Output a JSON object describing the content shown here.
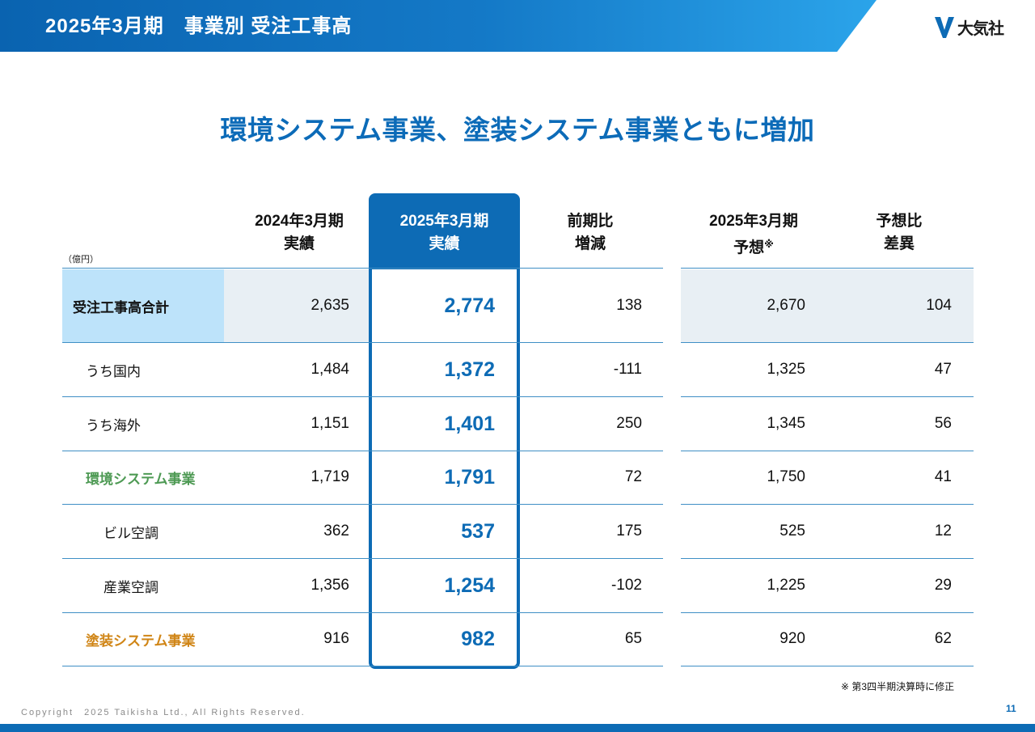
{
  "header": {
    "title": "2025年3月期　事業別 受注工事高",
    "logo_text": "大気社",
    "logo_icon": "taikisha-logo-mark"
  },
  "subtitle": "環境システム事業、塗装システム事業ともに増加",
  "unit": "（億円）",
  "columns": {
    "prev_actual": [
      "2024年3月期",
      "実績"
    ],
    "curr_actual": [
      "2025年3月期",
      "実績"
    ],
    "yoy": [
      "前期比",
      "増減"
    ],
    "forecast": [
      "2025年3月期",
      "予想",
      "※"
    ],
    "vs_forecast": [
      "予想比",
      "差異"
    ]
  },
  "rows": [
    {
      "label": "受注工事高合計",
      "prev": "2,635",
      "curr": "2,774",
      "yoy": "138",
      "forecast": "2,670",
      "diff": "104"
    },
    {
      "label": "うち国内",
      "prev": "1,484",
      "curr": "1,372",
      "yoy": "-111",
      "forecast": "1,325",
      "diff": "47"
    },
    {
      "label": "うち海外",
      "prev": "1,151",
      "curr": "1,401",
      "yoy": "250",
      "forecast": "1,345",
      "diff": "56"
    },
    {
      "label": "環境システム事業",
      "prev": "1,719",
      "curr": "1,791",
      "yoy": "72",
      "forecast": "1,750",
      "diff": "41"
    },
    {
      "label": "ビル空調",
      "prev": "362",
      "curr": "537",
      "yoy": "175",
      "forecast": "525",
      "diff": "12"
    },
    {
      "label": "産業空調",
      "prev": "1,356",
      "curr": "1,254",
      "yoy": "-102",
      "forecast": "1,225",
      "diff": "29"
    },
    {
      "label": "塗装システム事業",
      "prev": "916",
      "curr": "982",
      "yoy": "65",
      "forecast": "920",
      "diff": "62"
    }
  ],
  "footnote": "※  第3四半期決算時に修正",
  "copyright": "Copyright　2025 Taikisha Ltd., All Rights Reserved.",
  "page_number": "11",
  "colors": {
    "brand_blue": "#0d6bb5",
    "environment_green": "#4e9a54",
    "painting_orange": "#d08516",
    "total_row_label_bg": "#bde3fa",
    "total_row_bg": "#e8eff4"
  }
}
